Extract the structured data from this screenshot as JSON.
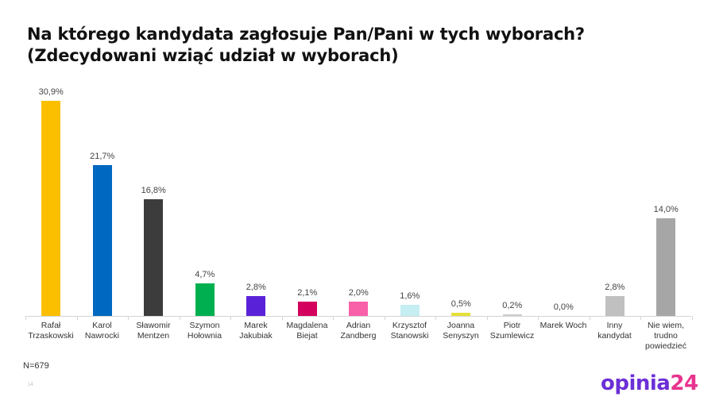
{
  "title": {
    "line1": "Na którego kandydata zagłosuje Pan/Pani w tych wyborach?",
    "line2": "(Zdecydowani wziąć udział w wyborach)"
  },
  "footer": {
    "sample_size": "N=679",
    "page_number": "14",
    "logo_part1": "opinia",
    "logo_part2": "24",
    "logo_colors": {
      "opinia": "#6b2fd6",
      "24": "#e8348f"
    }
  },
  "chart_data": {
    "type": "bar",
    "title": "Na którego kandydata zagłosuje Pan/Pani w tych wyborach? (Zdecydowani wziąć udział w wyborach)",
    "xlabel": "",
    "ylabel": "",
    "ylim": [
      0,
      31
    ],
    "grid": false,
    "legend": "none",
    "categories": [
      "Rafał Trzaskowski",
      "Karol Nawrocki",
      "Sławomir Mentzen",
      "Szymon Hołownia",
      "Marek Jakubiak",
      "Magdalena Biejat",
      "Adrian Zandberg",
      "Krzysztof Stanowski",
      "Joanna Senyszyn",
      "Piotr Szumlewicz",
      "Marek Woch",
      "Inny kandydat",
      "Nie wiem, trudno powiedzieć"
    ],
    "values": [
      30.9,
      21.7,
      16.8,
      4.7,
      2.8,
      2.1,
      2.0,
      1.6,
      0.5,
      0.2,
      0.0,
      2.8,
      14.0
    ],
    "value_labels": [
      "30,9%",
      "21,7%",
      "16,8%",
      "4,7%",
      "2,8%",
      "2,1%",
      "2,0%",
      "1,6%",
      "0,5%",
      "0,2%",
      "0,0%",
      "2,8%",
      "14,0%"
    ],
    "colors": [
      "#fcbf00",
      "#0068c0",
      "#3c3c3c",
      "#00b050",
      "#5a22d8",
      "#d3005e",
      "#f860a8",
      "#c4eef2",
      "#e5e03a",
      "#cccccc",
      "#cccccc",
      "#c0c0c0",
      "#a6a6a6"
    ],
    "label_lines": [
      [
        "Rafał",
        "Trzaskowski"
      ],
      [
        "Karol",
        "Nawrocki"
      ],
      [
        "Sławomir",
        "Mentzen"
      ],
      [
        "Szymon",
        "Hołownia"
      ],
      [
        "Marek",
        "Jakubiak"
      ],
      [
        "Magdalena",
        "Biejat"
      ],
      [
        "Adrian",
        "Zandberg"
      ],
      [
        "Krzysztof",
        "Stanowski"
      ],
      [
        "Joanna",
        "Senyszyn"
      ],
      [
        "Piotr",
        "Szumlewicz"
      ],
      [
        "Marek Woch"
      ],
      [
        "Inny",
        "kandydat"
      ],
      [
        "Nie wiem,",
        "trudno",
        "powiedzieć"
      ]
    ]
  }
}
